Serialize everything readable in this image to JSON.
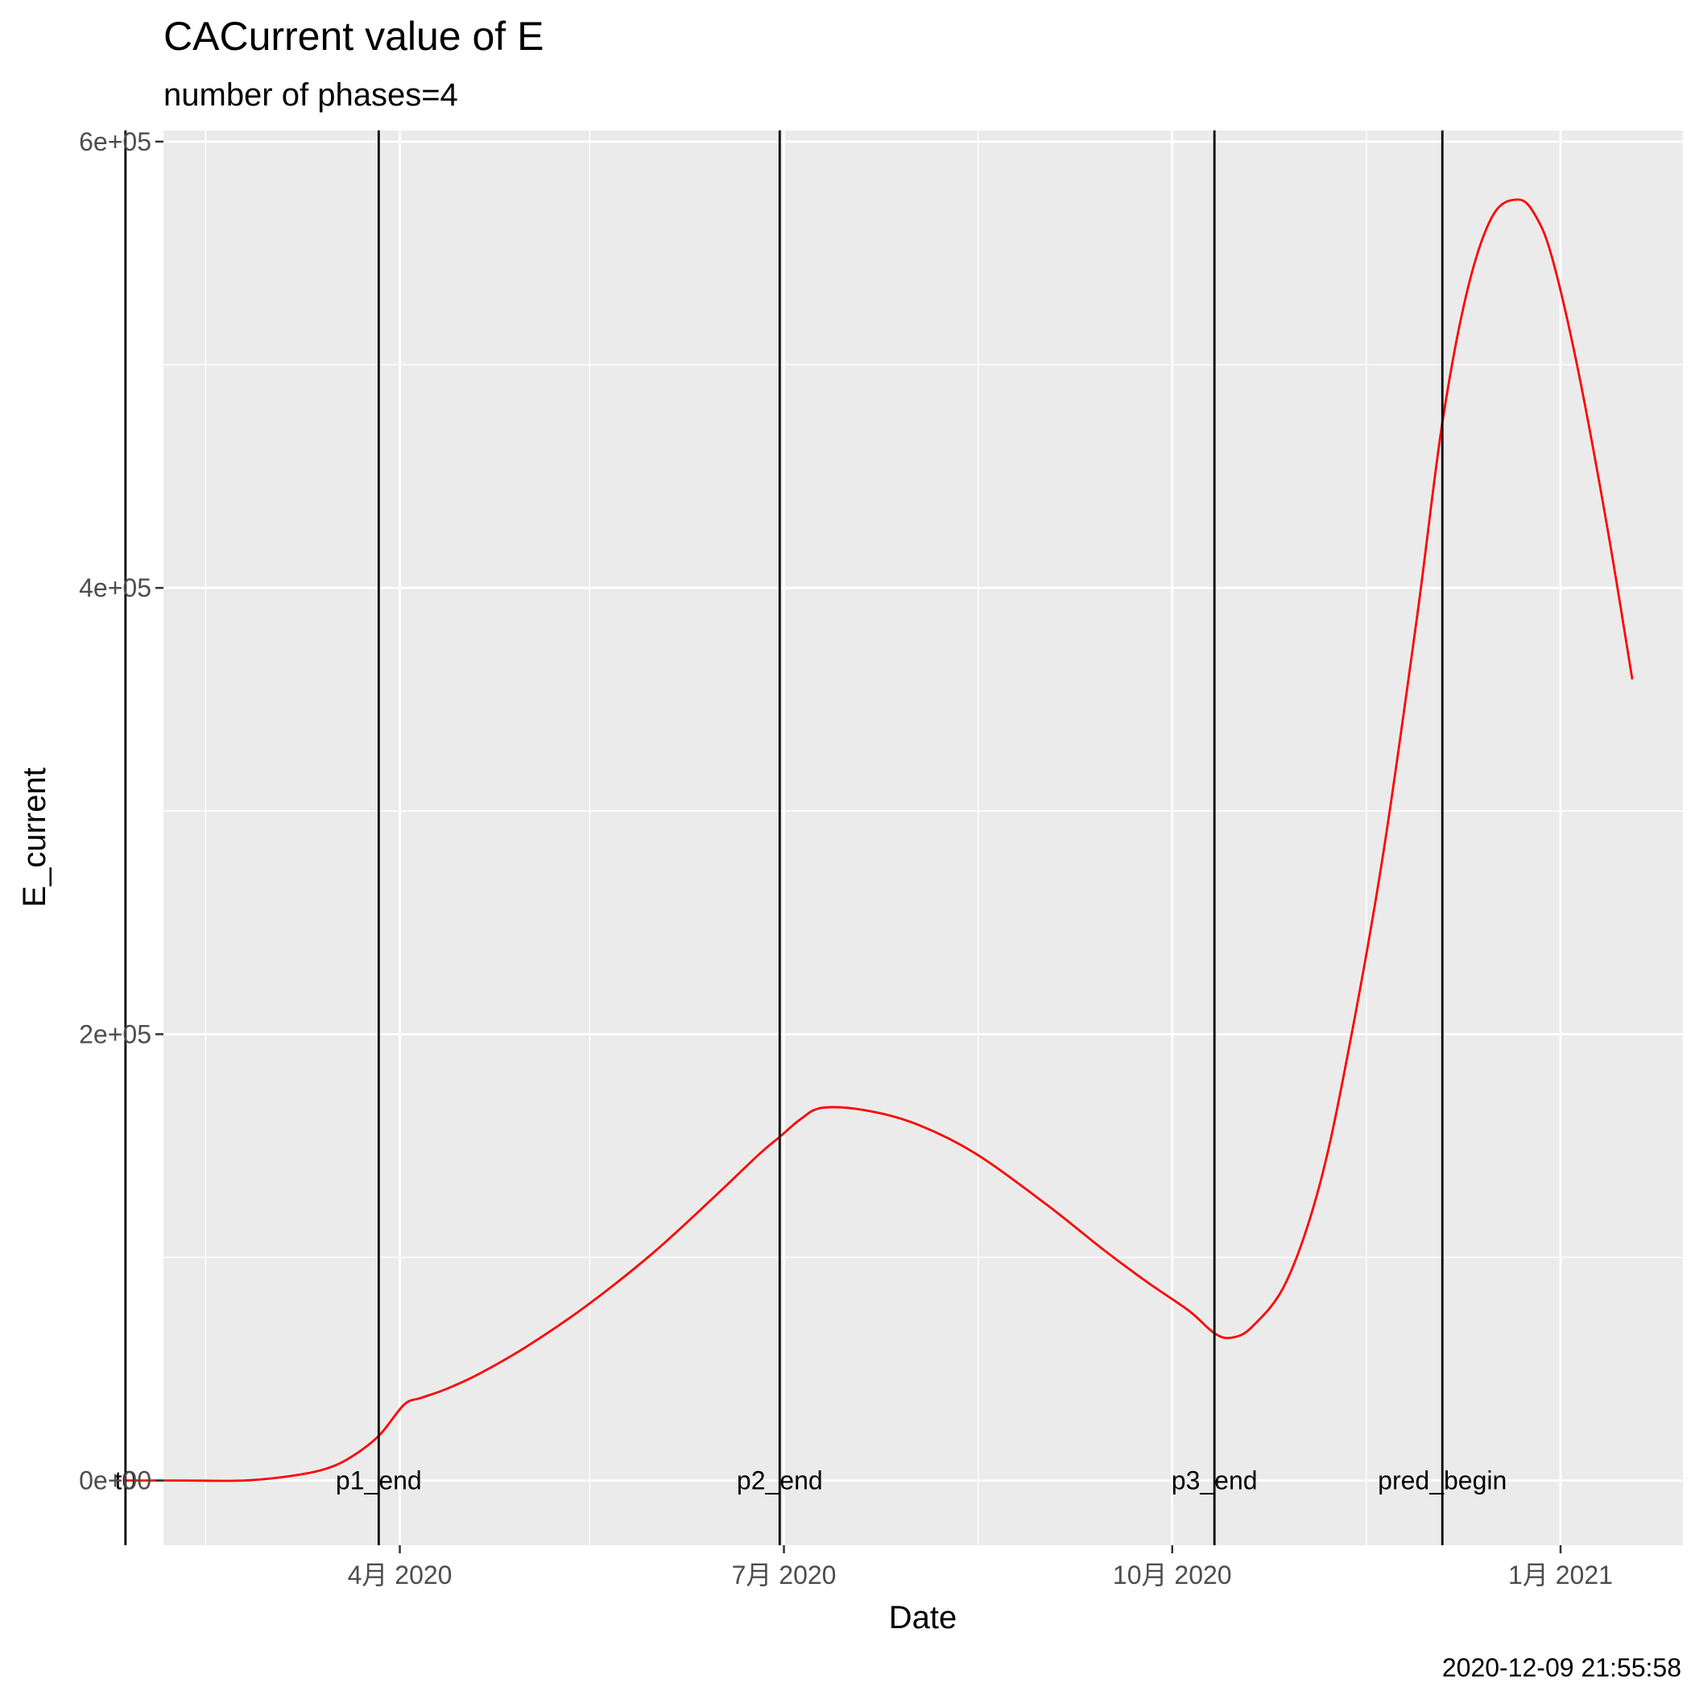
{
  "chart_data": {
    "type": "line",
    "title": "CACurrent value of E",
    "subtitle": "number of phases=4",
    "xlabel": "Date",
    "ylabel": "E_current",
    "caption": "2020-12-09 21:55:58",
    "xlim": [
      "2020-02-05",
      "2021-01-30"
    ],
    "ylim": [
      -29000,
      605000
    ],
    "x_ticks": [
      {
        "date": "2020-04-01",
        "label": "4月 2020"
      },
      {
        "date": "2020-07-01",
        "label": "7月 2020"
      },
      {
        "date": "2020-10-01",
        "label": "10月 2020"
      },
      {
        "date": "2021-01-01",
        "label": "1月 2021"
      }
    ],
    "x_minor_ticks": [
      "2020-02-15",
      "2020-05-16",
      "2020-08-16",
      "2020-11-16"
    ],
    "y_ticks": [
      {
        "value": 0,
        "label": "0e+00"
      },
      {
        "value": 200000,
        "label": "2e+05"
      },
      {
        "value": 400000,
        "label": "4e+05"
      },
      {
        "value": 600000,
        "label": "6e+05"
      }
    ],
    "y_minor_ticks": [
      100000,
      300000,
      500000
    ],
    "grid": true,
    "legend": "none",
    "vlines": [
      {
        "date": "2020-01-27",
        "label": "t0"
      },
      {
        "date": "2020-03-27",
        "label": "p1_end"
      },
      {
        "date": "2020-06-30",
        "label": "p2_end"
      },
      {
        "date": "2020-10-11",
        "label": "p3_end"
      },
      {
        "date": "2020-12-04",
        "label": "pred_begin"
      }
    ],
    "series": [
      {
        "color": "#ff0000",
        "x": [
          "2020-01-27",
          "2020-02-10",
          "2020-02-24",
          "2020-03-06",
          "2020-03-14",
          "2020-03-20",
          "2020-03-27",
          "2020-04-02",
          "2020-04-06",
          "2020-04-12",
          "2020-04-20",
          "2020-05-01",
          "2020-05-15",
          "2020-05-31",
          "2020-06-15",
          "2020-06-25",
          "2020-06-30",
          "2020-07-05",
          "2020-07-10",
          "2020-07-20",
          "2020-08-01",
          "2020-08-15",
          "2020-09-01",
          "2020-09-15",
          "2020-09-25",
          "2020-10-05",
          "2020-10-11",
          "2020-10-15",
          "2020-10-20",
          "2020-10-28",
          "2020-11-05",
          "2020-11-12",
          "2020-11-20",
          "2020-11-28",
          "2020-12-04",
          "2020-12-10",
          "2020-12-16",
          "2020-12-22",
          "2020-12-26",
          "2020-12-30",
          "2021-01-05",
          "2021-01-12",
          "2021-01-18"
        ],
        "values": [
          0,
          0,
          0,
          2000,
          5000,
          10000,
          20000,
          34000,
          37000,
          41000,
          48000,
          60000,
          78000,
          102000,
          128000,
          146000,
          154000,
          162000,
          167000,
          166000,
          160000,
          147000,
          124000,
          103000,
          89000,
          76000,
          66000,
          64000,
          69000,
          89000,
          133000,
          195000,
          281000,
          387000,
          474000,
          534000,
          567000,
          574000,
          567000,
          548000,
          499000,
          428000,
          359000
        ]
      }
    ]
  }
}
